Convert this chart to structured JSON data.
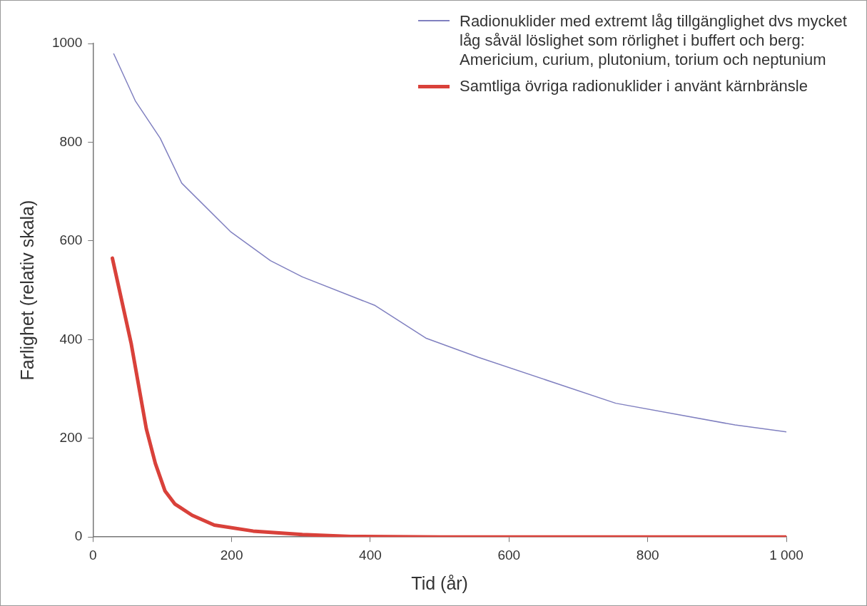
{
  "chart_data": {
    "type": "line",
    "xlabel": "Tid (år)",
    "ylabel": "Farlighet (relativ skala)",
    "xlim": [
      0,
      1000
    ],
    "xticks": [
      0,
      200,
      400,
      600,
      800,
      {
        "value": 1000,
        "label": "1 000"
      }
    ],
    "ylim": [
      0,
      1000
    ],
    "yticks": [
      0,
      200,
      400,
      600,
      800,
      1000
    ],
    "grid": false,
    "legend": "top right",
    "marker": "none",
    "line_style": "solid",
    "series": [
      {
        "name": "Radionuklider med extremt låg tillgänglighet dvs mycket låg såväl löslighet som rörlighet i buffert och berg: Americium, curium, plutonium, torium och neptunium",
        "color": "#8080c0",
        "x": [
          30,
          61,
          97,
          128,
          199,
          256,
          302,
          407,
          480,
          556,
          754,
          926,
          1000
        ],
        "values": [
          979,
          884,
          808,
          717,
          618,
          560,
          527,
          469,
          403,
          364,
          271,
          227,
          213
        ]
      },
      {
        "name": "Samtliga övriga radionuklider i använt kärnbränsle",
        "color": "#d9413a",
        "x": [
          28,
          55,
          77,
          90,
          104,
          118,
          143,
          175,
          231,
          302,
          372,
          500,
          700,
          1000
        ],
        "values": [
          565,
          393,
          219,
          149,
          93,
          67,
          44,
          24,
          12,
          5,
          1,
          0,
          0,
          0
        ]
      }
    ]
  }
}
